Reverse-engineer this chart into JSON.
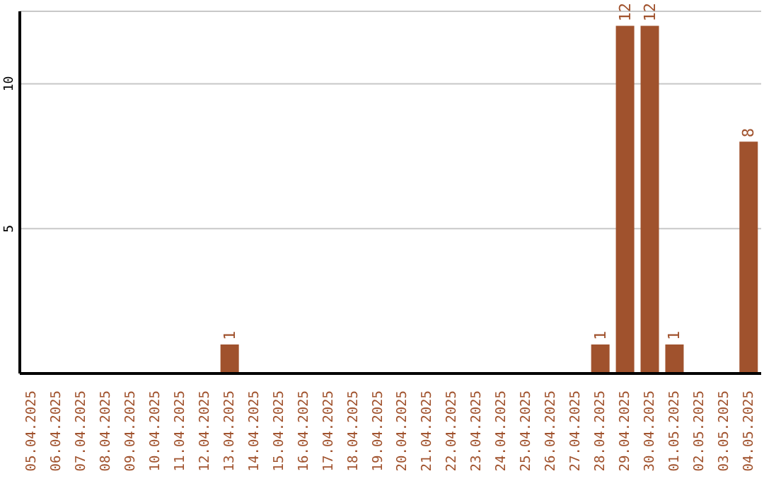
{
  "chart_data": {
    "type": "bar",
    "categories": [
      "05.04.2025",
      "06.04.2025",
      "07.04.2025",
      "08.04.2025",
      "09.04.2025",
      "10.04.2025",
      "11.04.2025",
      "12.04.2025",
      "13.04.2025",
      "14.04.2025",
      "15.04.2025",
      "16.04.2025",
      "17.04.2025",
      "18.04.2025",
      "19.04.2025",
      "20.04.2025",
      "21.04.2025",
      "22.04.2025",
      "23.04.2025",
      "24.04.2025",
      "25.04.2025",
      "26.04.2025",
      "27.04.2025",
      "28.04.2025",
      "29.04.2025",
      "30.04.2025",
      "01.05.2025",
      "02.05.2025",
      "03.05.2025",
      "04.05.2025"
    ],
    "values": [
      0,
      0,
      0,
      0,
      0,
      0,
      0,
      0,
      1,
      0,
      0,
      0,
      0,
      0,
      0,
      0,
      0,
      0,
      0,
      0,
      0,
      0,
      0,
      1,
      12,
      12,
      1,
      0,
      0,
      8
    ],
    "color": "#a0522d",
    "ylim": [
      0,
      12.5
    ],
    "yticks": [
      5,
      10
    ],
    "grid": "y",
    "value_labels": [
      null,
      null,
      null,
      null,
      null,
      null,
      null,
      null,
      "1",
      null,
      null,
      null,
      null,
      null,
      null,
      null,
      null,
      null,
      null,
      null,
      null,
      null,
      null,
      "1",
      "12",
      "12",
      "1",
      null,
      null,
      "8"
    ]
  }
}
